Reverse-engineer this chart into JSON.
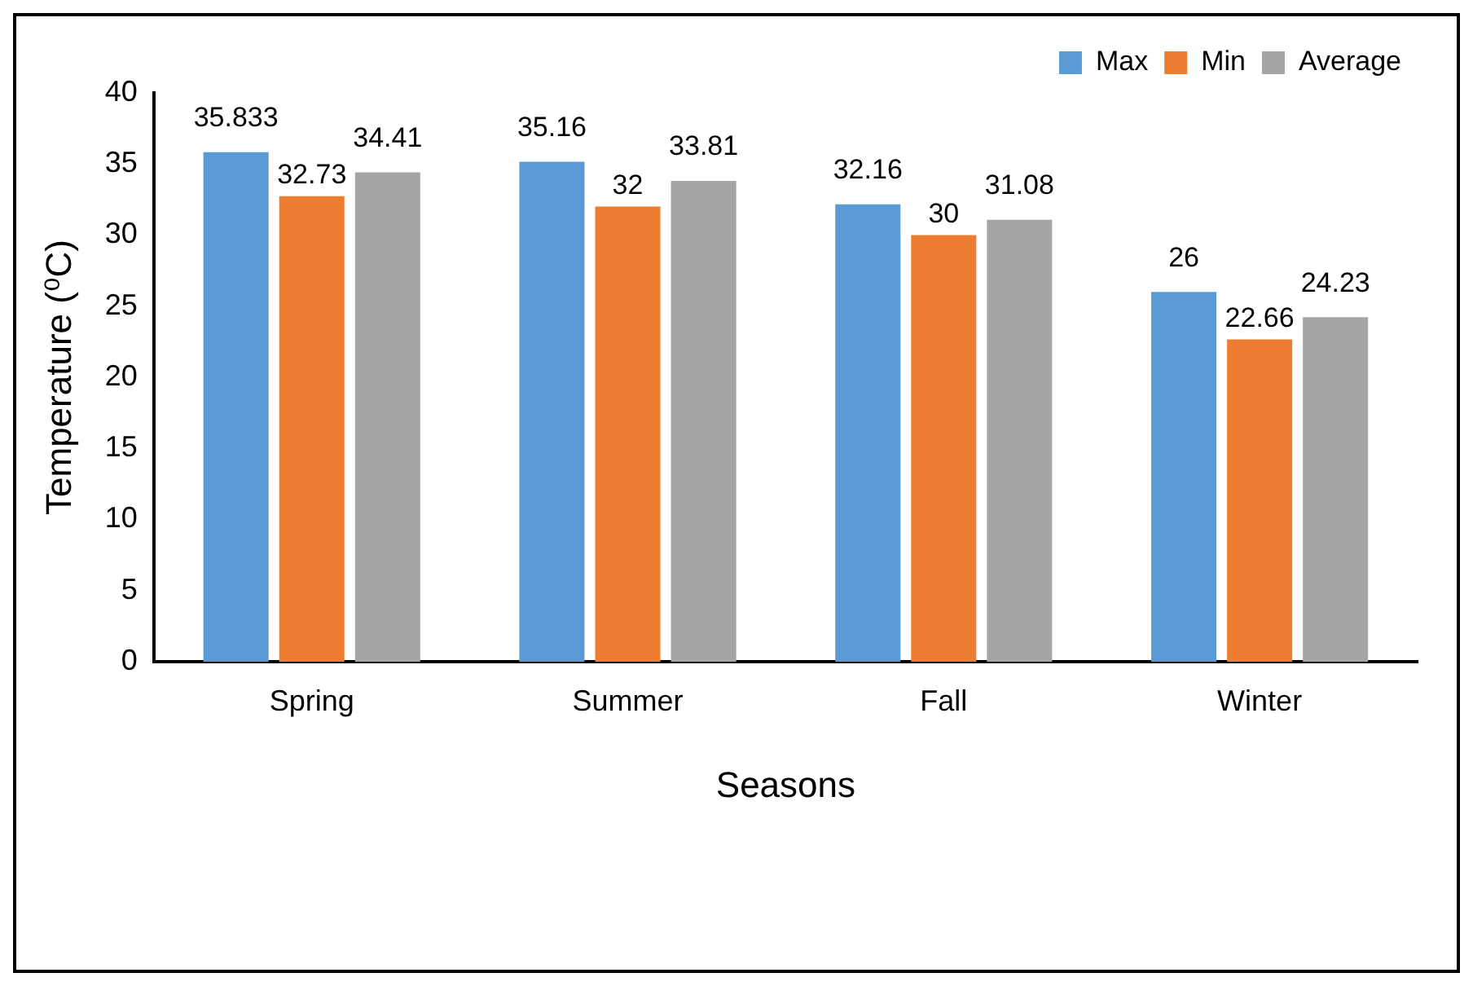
{
  "chart_data": {
    "type": "bar",
    "xlabel": "Seasons",
    "ylabel": "Temperature (⁰C)",
    "categories": [
      "Spring",
      "Summer",
      "Fall",
      "Winter"
    ],
    "series": [
      {
        "name": "Max",
        "color": "#5b9bd5",
        "values": [
          35.833,
          35.16,
          32.16,
          26
        ]
      },
      {
        "name": "Min",
        "color": "#ed7d31",
        "values": [
          32.73,
          32,
          30,
          22.66
        ]
      },
      {
        "name": "Average",
        "color": "#a5a5a5",
        "values": [
          34.41,
          33.81,
          31.08,
          24.23
        ]
      }
    ],
    "ylim": [
      0,
      40
    ],
    "yticks": [
      0,
      5,
      10,
      15,
      20,
      25,
      30,
      35,
      40
    ],
    "grid": false,
    "legend": "top right",
    "data_labels": true
  }
}
